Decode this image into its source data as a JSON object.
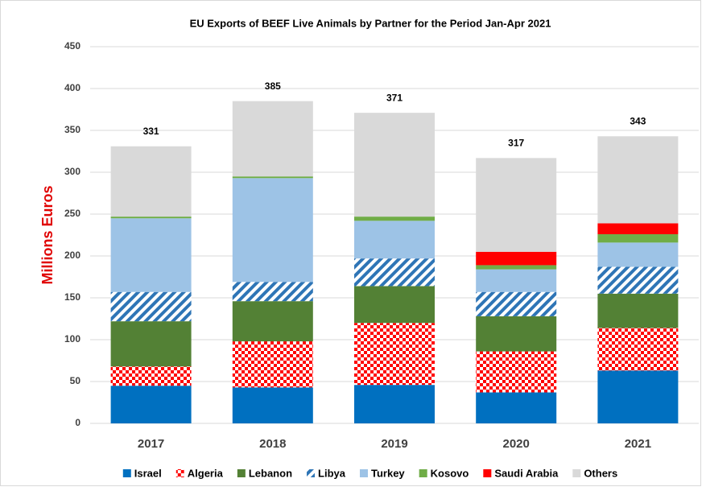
{
  "chart_data": {
    "type": "stacked_bar",
    "title": "EU Exports of BEEF Live Animals by Partner for the Period Jan-Apr 2021",
    "y_label": "Millions Euros",
    "categories": [
      "2017",
      "2018",
      "2019",
      "2020",
      "2021"
    ],
    "series": [
      {
        "name": "Israel",
        "color": "#0070c0",
        "pattern": "solid",
        "values": [
          45,
          43,
          46,
          37,
          63
        ]
      },
      {
        "name": "Algeria",
        "color": "#ff0000",
        "pattern": "checker",
        "values": [
          23,
          55,
          74,
          49,
          51
        ]
      },
      {
        "name": "Lebanon",
        "color": "#538135",
        "pattern": "solid",
        "values": [
          54,
          48,
          44,
          42,
          41
        ]
      },
      {
        "name": "Libya",
        "color": "#2e75b6",
        "pattern": "stripes",
        "values": [
          35,
          23,
          33,
          29,
          32
        ]
      },
      {
        "name": "Turkey",
        "color": "#9dc3e6",
        "pattern": "solid",
        "values": [
          88,
          124,
          45,
          27,
          29
        ]
      },
      {
        "name": "Kosovo",
        "color": "#70ad47",
        "pattern": "solid",
        "values": [
          2,
          2,
          5,
          5,
          10
        ]
      },
      {
        "name": "Saudi Arabia",
        "color": "#ff0000",
        "pattern": "solid",
        "values": [
          0,
          0,
          0,
          16,
          13
        ]
      },
      {
        "name": "Others",
        "color": "#d9d9d9",
        "pattern": "solid",
        "values": [
          84,
          90,
          124,
          112,
          104
        ]
      }
    ],
    "total_labels": [
      331,
      385,
      371,
      317,
      343
    ],
    "ylim": [
      0,
      450
    ],
    "yticks": [
      0,
      50,
      100,
      150,
      200,
      250,
      300,
      350,
      400,
      450
    ],
    "grid": true,
    "legend": "bottom"
  }
}
